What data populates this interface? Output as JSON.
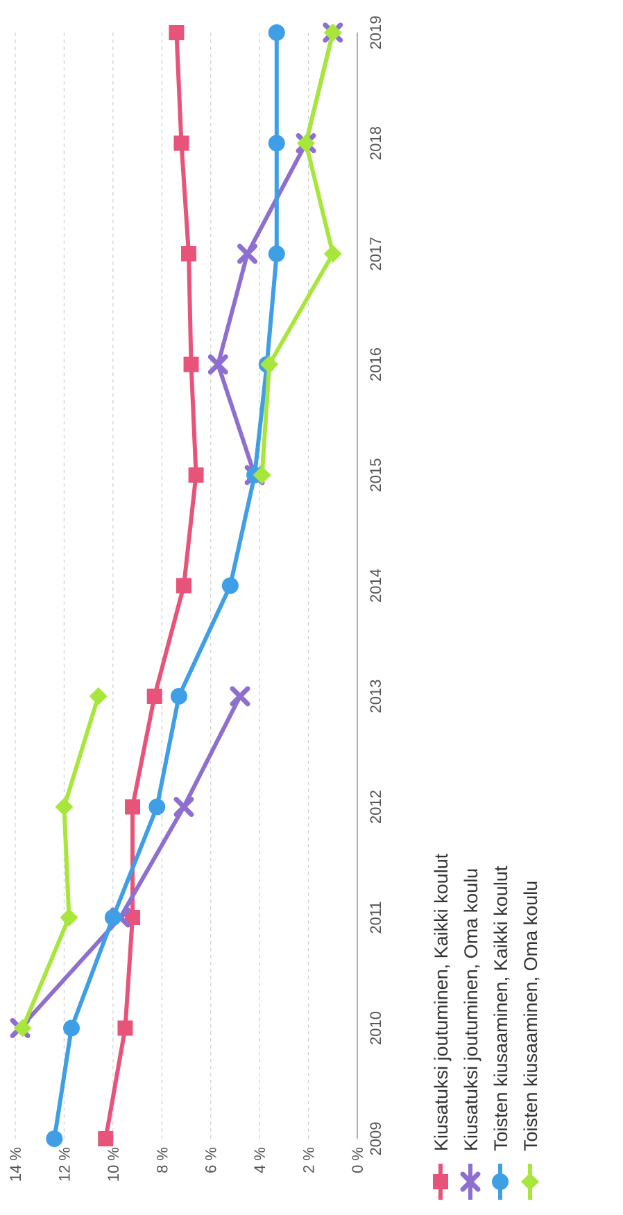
{
  "chart_data": {
    "type": "line",
    "categories": [
      "2009",
      "2010",
      "2011",
      "2012",
      "2013",
      "2014",
      "2015",
      "2016",
      "2017",
      "2018",
      "2019"
    ],
    "ylim": [
      0,
      14
    ],
    "yticks": [
      0,
      2,
      4,
      6,
      8,
      10,
      12,
      14
    ],
    "ytick_labels": [
      "0 %",
      "2 %",
      "4 %",
      "6 %",
      "8 %",
      "10 %",
      "12 %",
      "14 %"
    ],
    "grid": true,
    "legend_position": "bottom",
    "series": [
      {
        "name": "Kiusatuksi joutuminen, Kaikki koulut",
        "color": "#e8537a",
        "marker": "square",
        "values": [
          10.3,
          9.5,
          9.2,
          9.2,
          8.3,
          7.1,
          6.6,
          6.8,
          6.9,
          7.2,
          7.4
        ]
      },
      {
        "name": "Kiusatuksi joutuminen, Oma koulu",
        "color": "#8e6fd0",
        "marker": "x",
        "values": [
          null,
          13.8,
          9.7,
          7.1,
          4.8,
          null,
          4.2,
          5.7,
          4.5,
          2.1,
          1.0
        ]
      },
      {
        "name": "Toisten kiusaaminen, Kaikki koulut",
        "color": "#3f9fe6",
        "marker": "circle",
        "values": [
          12.4,
          11.7,
          10.0,
          8.2,
          7.3,
          5.2,
          4.2,
          3.7,
          3.3,
          3.3,
          3.3
        ]
      },
      {
        "name": "Toisten kiusaaminen, Oma koulu",
        "color": "#a8e63c",
        "marker": "diamond",
        "values": [
          null,
          13.7,
          11.8,
          12.0,
          10.6,
          null,
          3.9,
          3.6,
          1.0,
          2.1,
          1.0
        ]
      }
    ]
  }
}
